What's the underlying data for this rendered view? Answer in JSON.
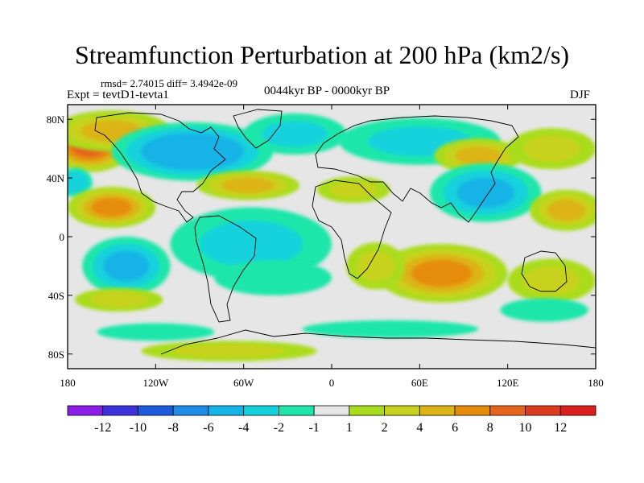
{
  "chart_data": {
    "type": "heatmap",
    "title": "Streamfunction Perturbation at 200 hPa (km2/s)",
    "subtitle_left": "Expt = tevtD1-tevta1",
    "subtitle_center": "0044kyr BP - 0000kyr BP",
    "subtitle_right": "DJF",
    "stats_text": "rmsd= 2.74015  diff= 3.4942e-09",
    "x_axis": {
      "range": [
        -180,
        180
      ],
      "ticks": [
        -180,
        -120,
        -60,
        0,
        60,
        120,
        180
      ],
      "tick_labels": [
        "180",
        "120W",
        "60W",
        "0",
        "60E",
        "120E",
        "180"
      ]
    },
    "y_axis": {
      "range": [
        -90,
        90
      ],
      "ticks": [
        80,
        40,
        0,
        -40,
        -80
      ],
      "tick_labels": [
        "80N",
        "40N",
        "0",
        "40S",
        "80S"
      ]
    },
    "colorbar": {
      "labels": [
        "-12",
        "-10",
        "-8",
        "-6",
        "-4",
        "-2",
        "-1",
        "1",
        "2",
        "4",
        "6",
        "8",
        "10",
        "12"
      ],
      "colors": [
        "#8a1ee6",
        "#3c32dc",
        "#1e5adc",
        "#1e8ce6",
        "#14b4e6",
        "#14d2dc",
        "#1ee6aa",
        "#e6e6e6",
        "#aadc1e",
        "#c8d21e",
        "#dcb414",
        "#e68c0a",
        "#e6641e",
        "#dc3c1e",
        "#dc1e1e"
      ]
    },
    "blobs": [
      {
        "lon": -165,
        "lat": 62,
        "rlon": 30,
        "rlat": 18,
        "value": 9
      },
      {
        "lon": -150,
        "lat": 72,
        "rlon": 40,
        "rlat": 14,
        "value": 4
      },
      {
        "lon": -95,
        "lat": 58,
        "rlon": 55,
        "rlat": 20,
        "value": -6
      },
      {
        "lon": -25,
        "lat": 70,
        "rlon": 35,
        "rlat": 14,
        "value": -3
      },
      {
        "lon": 60,
        "lat": 65,
        "rlon": 55,
        "rlat": 16,
        "value": -2.5
      },
      {
        "lon": 100,
        "lat": 55,
        "rlon": 30,
        "rlat": 12,
        "value": 4
      },
      {
        "lon": 150,
        "lat": 60,
        "rlon": 30,
        "rlat": 14,
        "value": 3
      },
      {
        "lon": -57,
        "lat": 35,
        "rlon": 35,
        "rlat": 10,
        "value": 5
      },
      {
        "lon": 15,
        "lat": 32,
        "rlon": 25,
        "rlat": 9,
        "value": 2
      },
      {
        "lon": -175,
        "lat": 37,
        "rlon": 12,
        "rlat": 10,
        "value": -4
      },
      {
        "lon": 105,
        "lat": 30,
        "rlon": 38,
        "rlat": 20,
        "value": -5
      },
      {
        "lon": -150,
        "lat": 20,
        "rlon": 30,
        "rlat": 14,
        "value": 6
      },
      {
        "lon": 160,
        "lat": 18,
        "rlon": 25,
        "rlat": 14,
        "value": 4
      },
      {
        "lon": -140,
        "lat": -20,
        "rlon": 30,
        "rlat": 20,
        "value": -5
      },
      {
        "lon": -55,
        "lat": -5,
        "rlon": 55,
        "rlat": 25,
        "value": -2.5
      },
      {
        "lon": -40,
        "lat": -28,
        "rlon": 40,
        "rlat": 12,
        "value": -2
      },
      {
        "lon": 75,
        "lat": -25,
        "rlon": 45,
        "rlat": 20,
        "value": 6
      },
      {
        "lon": 30,
        "lat": -20,
        "rlon": 20,
        "rlat": 16,
        "value": 2
      },
      {
        "lon": 150,
        "lat": -30,
        "rlon": 30,
        "rlat": 15,
        "value": 3
      },
      {
        "lon": -145,
        "lat": -43,
        "rlon": 30,
        "rlat": 8,
        "value": 2
      },
      {
        "lon": 145,
        "lat": -50,
        "rlon": 30,
        "rlat": 8,
        "value": -2
      },
      {
        "lon": -120,
        "lat": -65,
        "rlon": 40,
        "rlat": 6,
        "value": -2
      },
      {
        "lon": 40,
        "lat": -63,
        "rlon": 60,
        "rlat": 6,
        "value": -2
      },
      {
        "lon": -70,
        "lat": -78,
        "rlon": 60,
        "rlat": 7,
        "value": 2.5
      }
    ]
  }
}
